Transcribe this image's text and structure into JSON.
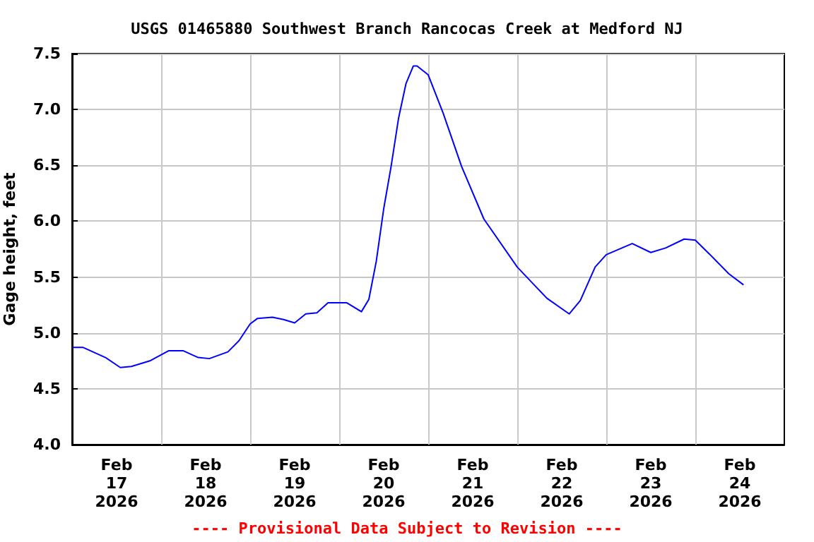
{
  "chart_data": {
    "type": "line",
    "title": "USGS 01465880 Southwest Branch Rancocas Creek at Medford NJ",
    "ylabel": "Gage height, feet",
    "annotations": [
      "---- Provisional Data Subject to Revision ----"
    ],
    "x": [
      "2026-02-17T00:00",
      "2026-02-17T03:00",
      "2026-02-17T09:00",
      "2026-02-17T13:00",
      "2026-02-17T16:00",
      "2026-02-17T21:00",
      "2026-02-18T02:00",
      "2026-02-18T06:00",
      "2026-02-18T10:00",
      "2026-02-18T13:00",
      "2026-02-18T18:00",
      "2026-02-18T21:00",
      "2026-02-19T00:00",
      "2026-02-19T02:00",
      "2026-02-19T06:00",
      "2026-02-19T09:00",
      "2026-02-19T12:00",
      "2026-02-19T15:00",
      "2026-02-19T18:00",
      "2026-02-19T21:00",
      "2026-02-20T02:00",
      "2026-02-20T06:00",
      "2026-02-20T08:00",
      "2026-02-20T10:00",
      "2026-02-20T12:00",
      "2026-02-20T14:00",
      "2026-02-20T16:00",
      "2026-02-20T18:00",
      "2026-02-20T20:00",
      "2026-02-20T21:00",
      "2026-02-21T00:00",
      "2026-02-21T04:00",
      "2026-02-21T09:00",
      "2026-02-21T15:00",
      "2026-02-22T00:00",
      "2026-02-22T08:00",
      "2026-02-22T14:00",
      "2026-02-22T17:00",
      "2026-02-22T21:00",
      "2026-02-23T00:00",
      "2026-02-23T07:00",
      "2026-02-23T12:00",
      "2026-02-23T16:00",
      "2026-02-23T21:00",
      "2026-02-24T00:00",
      "2026-02-24T04:00",
      "2026-02-24T09:00",
      "2026-02-24T13:00"
    ],
    "series": [
      {
        "color": "#0000ff",
        "values": [
          4.87,
          4.87,
          4.78,
          4.69,
          4.7,
          4.75,
          4.84,
          4.84,
          4.78,
          4.77,
          4.83,
          4.93,
          5.08,
          5.13,
          5.14,
          5.12,
          5.09,
          5.17,
          5.18,
          5.27,
          5.27,
          5.19,
          5.3,
          5.64,
          6.11,
          6.49,
          6.92,
          7.23,
          7.39,
          7.39,
          7.31,
          6.97,
          6.49,
          6.02,
          5.59,
          5.31,
          5.17,
          5.29,
          5.59,
          5.7,
          5.8,
          5.72,
          5.76,
          5.84,
          5.83,
          5.7,
          5.53,
          5.43
        ]
      }
    ],
    "xlim": [
      "2026-02-17T00:00",
      "2026-02-25T00:00"
    ],
    "xticks": [
      {
        "value": "2026-02-17T12:00",
        "label": "Feb\n17\n2026"
      },
      {
        "value": "2026-02-18T12:00",
        "label": "Feb\n18\n2026"
      },
      {
        "value": "2026-02-19T12:00",
        "label": "Feb\n19\n2026"
      },
      {
        "value": "2026-02-20T12:00",
        "label": "Feb\n20\n2026"
      },
      {
        "value": "2026-02-21T12:00",
        "label": "Feb\n21\n2026"
      },
      {
        "value": "2026-02-22T12:00",
        "label": "Feb\n22\n2026"
      },
      {
        "value": "2026-02-23T12:00",
        "label": "Feb\n23\n2026"
      },
      {
        "value": "2026-02-24T12:00",
        "label": "Feb\n24\n2026"
      },
      {
        "value": "2026-02-18T00:00",
        "label": null
      },
      {
        "value": "2026-02-19T00:00",
        "label": null
      },
      {
        "value": "2026-02-20T00:00",
        "label": null
      },
      {
        "value": "2026-02-21T00:00",
        "label": null
      },
      {
        "value": "2026-02-22T00:00",
        "label": null
      },
      {
        "value": "2026-02-23T00:00",
        "label": null
      },
      {
        "value": "2026-02-24T00:00",
        "label": null
      }
    ],
    "ylim": [
      4,
      7.5
    ],
    "yticks": [
      {
        "value": 4,
        "label": "4.0"
      },
      4.5,
      {
        "value": 5,
        "label": "5.0"
      },
      5.5,
      {
        "value": 6,
        "label": "6.0"
      },
      6.5,
      {
        "value": 7,
        "label": "7.0"
      },
      7.5
    ],
    "grid": true,
    "marker": "none",
    "line_style": "solid"
  }
}
